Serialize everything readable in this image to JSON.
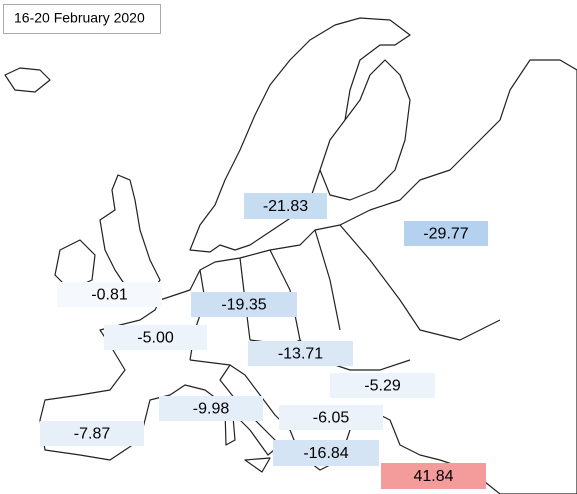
{
  "header": {
    "title": "16-20 February 2020"
  },
  "labels": [
    {
      "text": "-21.83",
      "color": "#c6dcf1"
    },
    {
      "text": "-29.77",
      "color": "#b4d2ef"
    },
    {
      "text": "-0.81",
      "color": "#f5f8fc"
    },
    {
      "text": "-19.35",
      "color": "#cde0f3"
    },
    {
      "text": "-5.00",
      "color": "#edf3fa"
    },
    {
      "text": "-13.71",
      "color": "#dae8f6"
    },
    {
      "text": "-5.29",
      "color": "#edf3fa"
    },
    {
      "text": "-9.98",
      "color": "#e4eef9"
    },
    {
      "text": "-6.05",
      "color": "#ecf2fa"
    },
    {
      "text": "-7.87",
      "color": "#e7f0f9"
    },
    {
      "text": "-16.84",
      "color": "#d4e4f5"
    },
    {
      "text": "41.84",
      "color": "#f49b9b"
    }
  ]
}
